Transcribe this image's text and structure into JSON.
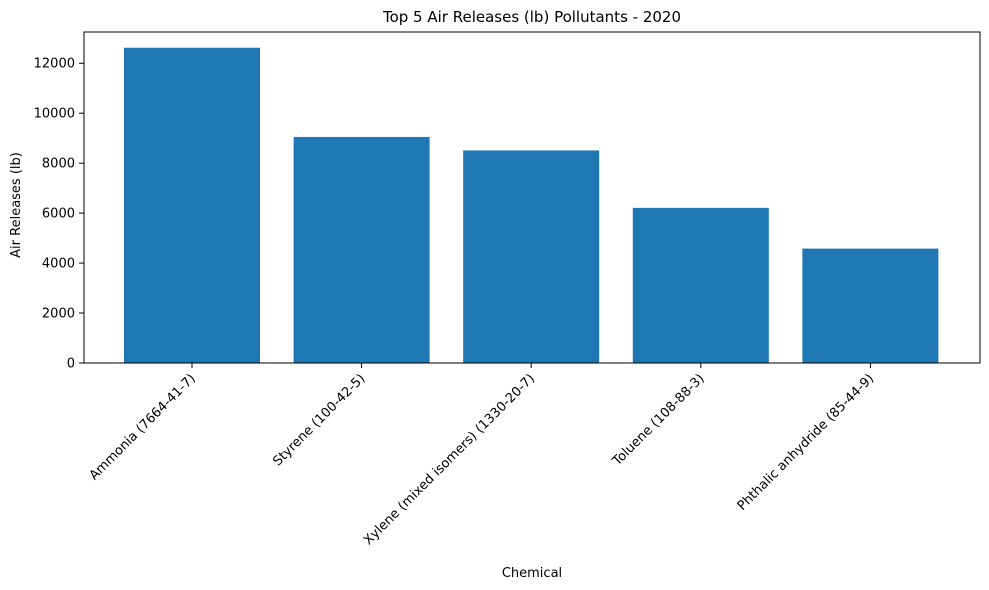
{
  "chart_data": {
    "type": "bar",
    "title": "Top 5 Air Releases (lb) Pollutants - 2020",
    "xlabel": "Chemical",
    "ylabel": "Air Releases (lb)",
    "categories": [
      "Ammonia (7664-41-7)",
      "Styrene (100-42-5)",
      "Xylene (mixed isomers) (1330-20-7)",
      "Toluene (108-88-3)",
      "Phthalic anhydride (85-44-9)"
    ],
    "values": [
      12620,
      9050,
      8510,
      6210,
      4580
    ],
    "ylim": [
      0,
      13251
    ],
    "yticks": [
      0,
      2000,
      4000,
      6000,
      8000,
      10000,
      12000
    ],
    "grid": false,
    "bar_color": "#1f77b4"
  }
}
